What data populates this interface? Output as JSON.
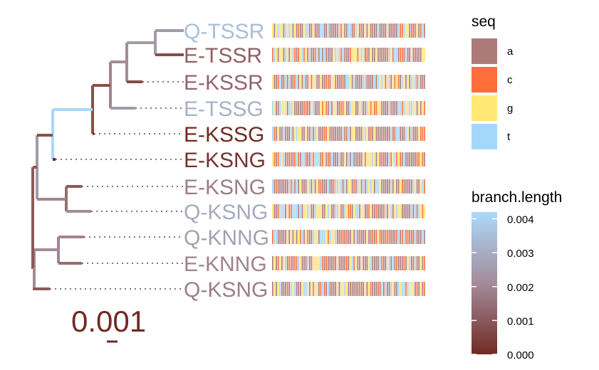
{
  "chart_data": {
    "type": "phylogenetic-tree-with-msa",
    "tips": [
      {
        "label": "Q-TSSR",
        "branch_length": 0.0035
      },
      {
        "label": "E-TSSR",
        "branch_length": 0.0012
      },
      {
        "label": "E-KSSR",
        "branch_length": 0.0013
      },
      {
        "label": "E-TSSG",
        "branch_length": 0.0031
      },
      {
        "label": "E-KSSG",
        "branch_length": 0.0
      },
      {
        "label": "E-KSNG",
        "branch_length": 0.0002
      },
      {
        "label": "E-KSNG",
        "branch_length": 0.0018
      },
      {
        "label": "Q-KSNG",
        "branch_length": 0.0029
      },
      {
        "label": "Q-KNNG",
        "branch_length": 0.0026
      },
      {
        "label": "E-KNNG",
        "branch_length": 0.0019
      },
      {
        "label": "Q-KSNG",
        "branch_length": 0.0018
      }
    ],
    "seq_legend": {
      "title": "seq",
      "items": [
        {
          "label": "a",
          "color": "#AD7A7A"
        },
        {
          "label": "c",
          "color": "#FF6E3A"
        },
        {
          "label": "g",
          "color": "#FFE873"
        },
        {
          "label": "t",
          "color": "#A3D8FB"
        }
      ]
    },
    "branch_length_legend": {
      "title": "branch.length",
      "ticks": [
        "0.004",
        "0.003",
        "0.002",
        "0.001",
        "0.000"
      ],
      "range": [
        0.0,
        0.0042
      ],
      "low_color": "#712A23",
      "mid_color": "#A48B9A",
      "high_color": "#ABD9F9"
    },
    "scale_bar": {
      "label": "0.001",
      "value": 0.001
    }
  }
}
